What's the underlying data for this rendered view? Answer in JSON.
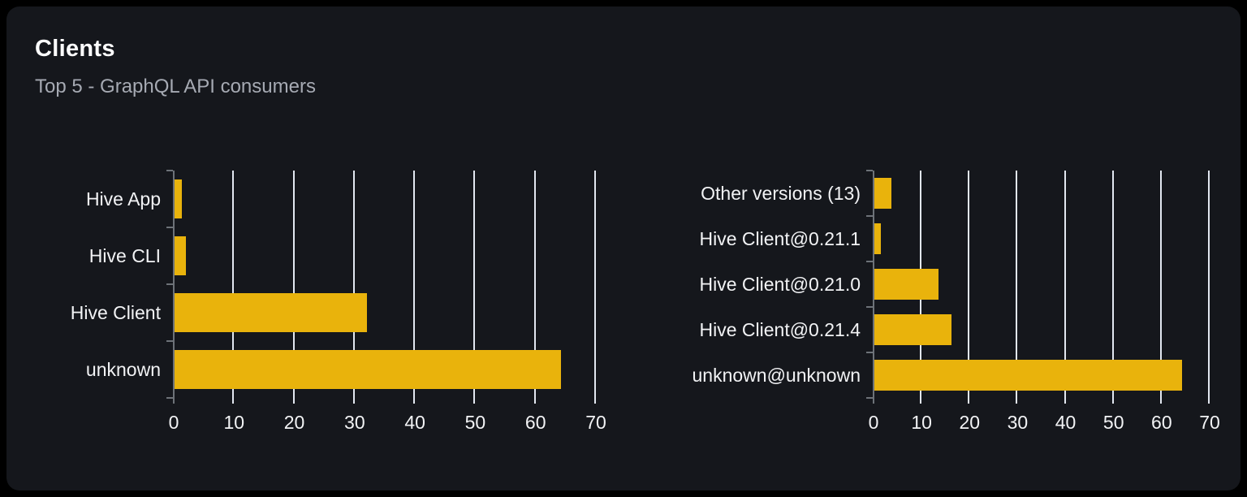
{
  "card": {
    "title": "Clients",
    "subtitle": "Top 5 - GraphQL API consumers"
  },
  "colors": {
    "page_bg": "#000000",
    "card_bg": "#15171c",
    "bar": "#e9b30c",
    "gridline": "#e2e7f0",
    "axis": "#6d7278",
    "label_text": "#f2f3f5",
    "subtitle_text": "#a6aab3"
  },
  "chart_data": [
    {
      "type": "bar",
      "orientation": "horizontal",
      "name": "clients-by-name",
      "title": "",
      "categories": [
        "Hive App",
        "Hive CLI",
        "Hive Client",
        "unknown"
      ],
      "values": [
        1.5,
        2.2,
        32.2,
        64.3
      ],
      "xlabel": "",
      "ylabel": "",
      "xlim": [
        0,
        70
      ],
      "x_ticks": [
        0,
        10,
        20,
        30,
        40,
        50,
        60,
        70
      ],
      "grid": "vertical",
      "legend": "none"
    },
    {
      "type": "bar",
      "orientation": "horizontal",
      "name": "clients-by-version",
      "title": "",
      "categories": [
        "Other versions (13)",
        "Hive Client@0.21.1",
        "Hive Client@0.21.0",
        "Hive Client@0.21.4",
        "unknown@unknown"
      ],
      "values": [
        3.9,
        1.7,
        13.7,
        16.4,
        64.5
      ],
      "xlabel": "",
      "ylabel": "",
      "xlim": [
        0,
        70
      ],
      "x_ticks": [
        0,
        10,
        20,
        30,
        40,
        50,
        60,
        70
      ],
      "grid": "vertical",
      "legend": "none"
    }
  ]
}
